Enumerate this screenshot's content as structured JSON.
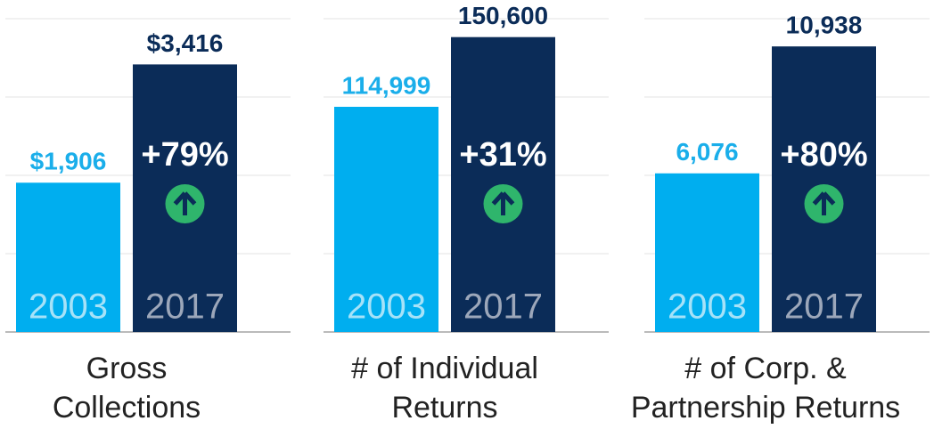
{
  "chart_data": [
    {
      "type": "bar",
      "xlabel": "Gross\nCollections",
      "categories": [
        "2003",
        "2017"
      ],
      "values": [
        1906,
        3416
      ],
      "value_labels": [
        "$1,906",
        "$3,416"
      ],
      "colors": [
        "#00aeef",
        "#0b2c58"
      ],
      "annotation": "+79%",
      "ylim": [
        0,
        4000
      ],
      "yticks": [
        0,
        1000,
        2000,
        3000,
        4000
      ],
      "grid": true
    },
    {
      "type": "bar",
      "xlabel": "# of Individual\nReturns",
      "categories": [
        "2003",
        "2017"
      ],
      "values": [
        114999,
        150600
      ],
      "value_labels": [
        "114,999",
        "150,600"
      ],
      "colors": [
        "#00aeef",
        "#0b2c58"
      ],
      "annotation": "+31%",
      "ylim": [
        0,
        160000
      ],
      "yticks": [
        0,
        40000,
        80000,
        120000,
        160000
      ],
      "grid": true
    },
    {
      "type": "bar",
      "xlabel": "# of Corp. &\nPartnership Returns",
      "categories": [
        "2003",
        "2017"
      ],
      "values": [
        6076,
        10938
      ],
      "value_labels": [
        "6,076",
        "10,938"
      ],
      "colors": [
        "#00aeef",
        "#0b2c58"
      ],
      "annotation": "+80%",
      "ylim": [
        0,
        12000
      ],
      "yticks": [
        0,
        3000,
        6000,
        9000,
        12000
      ],
      "grid": true
    }
  ]
}
